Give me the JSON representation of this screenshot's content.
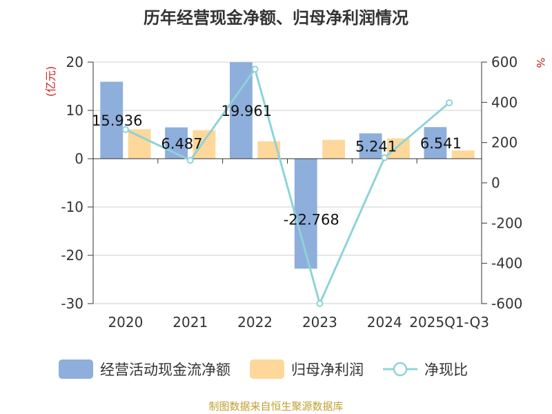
{
  "title": "历年经营现金净额、归母净利润情况",
  "source": "制图数据来自恒生聚源数据库",
  "left_unit": "(亿元)",
  "right_unit": "%",
  "chart_data": {
    "type": "bar",
    "categories": [
      "2020",
      "2021",
      "2022",
      "2023",
      "2024",
      "2025Q1-Q3"
    ],
    "y_left": {
      "ylim": [
        -30,
        20
      ],
      "ticks": [
        "-30",
        "-20",
        "-10",
        "0",
        "10",
        "20"
      ]
    },
    "y_right": {
      "ylim": [
        -600,
        600
      ],
      "ticks": [
        "-600",
        "-400",
        "-200",
        "0",
        "200",
        "400",
        "600"
      ]
    },
    "series": [
      {
        "name": "经营活动现金流净额",
        "type": "bar",
        "axis": "left",
        "color": "#8eaedc",
        "values": [
          15.936,
          6.487,
          19.961,
          -22.768,
          5.241,
          6.541
        ],
        "labels": [
          "15.936",
          "6.487",
          "19.961",
          "-22.768",
          "5.241",
          "6.541"
        ]
      },
      {
        "name": "归母净利润",
        "type": "bar",
        "axis": "left",
        "color": "#fdd89a",
        "values": [
          6.1,
          5.9,
          3.6,
          3.9,
          4.2,
          1.7
        ]
      },
      {
        "name": "净现比",
        "type": "line",
        "axis": "right",
        "color": "#8dd3d8",
        "values": [
          265,
          112,
          565,
          -600,
          125,
          398
        ]
      }
    ],
    "grid": true,
    "legend": "bottom"
  }
}
